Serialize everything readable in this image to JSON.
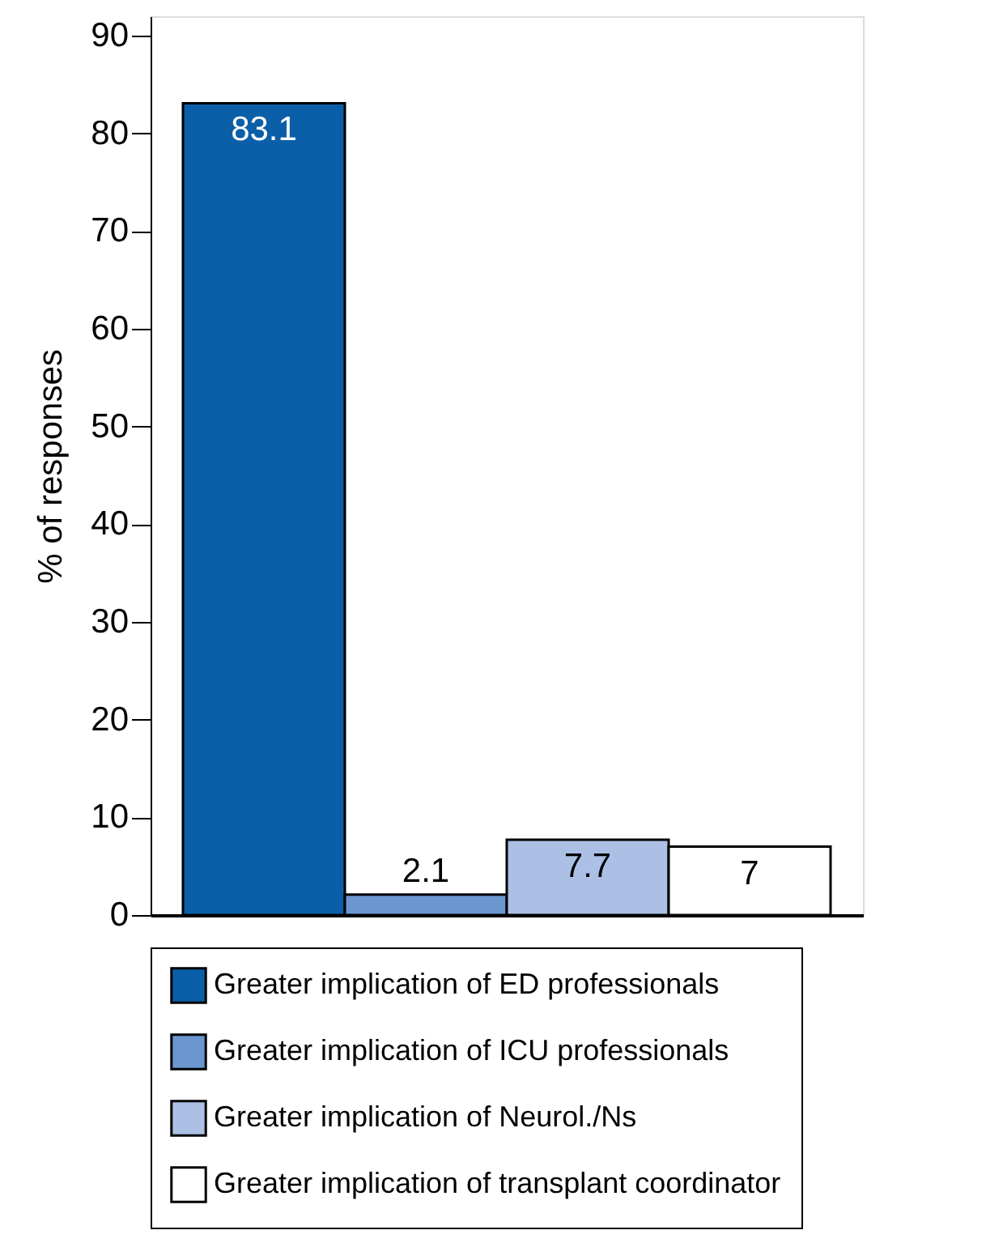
{
  "chart_data": {
    "type": "bar",
    "ylabel": "% of responses",
    "categories": [
      null
    ],
    "series": [
      {
        "name": "Greater implication of ED professionals",
        "color": "#0a5fa8",
        "values": [
          83.1
        ]
      },
      {
        "name": "Greater implication of ICU professionals",
        "color": "#6b97cf",
        "values": [
          2.1
        ]
      },
      {
        "name": "Greater implication of Neurol./Ns",
        "color": "#abc0e4",
        "values": [
          7.7
        ]
      },
      {
        "name": "Greater implication of transplant coordinator",
        "color": "#ffffff",
        "values": [
          7
        ]
      }
    ],
    "ylim": [
      0,
      92
    ],
    "yticks": [
      0,
      10,
      20,
      30,
      40,
      50,
      60,
      70,
      80,
      90
    ],
    "grid": false,
    "legend": "bottom",
    "data_labels": true
  }
}
